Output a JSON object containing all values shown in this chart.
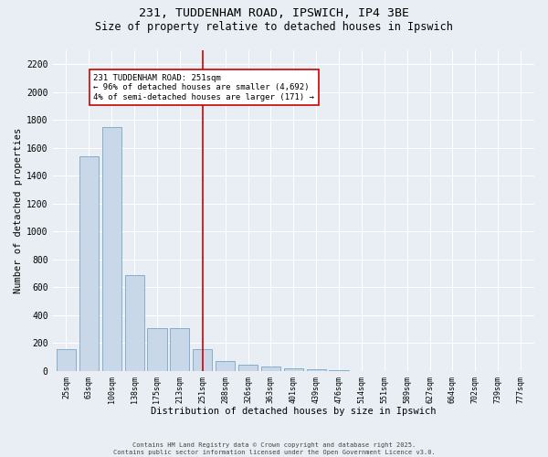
{
  "title_line1": "231, TUDDENHAM ROAD, IPSWICH, IP4 3BE",
  "title_line2": "Size of property relative to detached houses in Ipswich",
  "xlabel": "Distribution of detached houses by size in Ipswich",
  "ylabel": "Number of detached properties",
  "categories": [
    "25sqm",
    "63sqm",
    "100sqm",
    "138sqm",
    "175sqm",
    "213sqm",
    "251sqm",
    "288sqm",
    "326sqm",
    "363sqm",
    "401sqm",
    "439sqm",
    "476sqm",
    "514sqm",
    "551sqm",
    "589sqm",
    "627sqm",
    "664sqm",
    "702sqm",
    "739sqm",
    "777sqm"
  ],
  "values": [
    160,
    1540,
    1750,
    690,
    310,
    310,
    160,
    75,
    45,
    30,
    18,
    10,
    5,
    2,
    1,
    0,
    0,
    0,
    0,
    0,
    0
  ],
  "property_bin_index": 6,
  "annotation_text": "231 TUDDENHAM ROAD: 251sqm\n← 96% of detached houses are smaller (4,692)\n4% of semi-detached houses are larger (171) →",
  "bar_color": "#c8d8e8",
  "bar_edge_color": "#6699bb",
  "highlight_color": "#cc0000",
  "background_color": "#e8eef4",
  "fig_background": "#e8eef4",
  "grid_color": "#ffffff",
  "ylim": [
    0,
    2300
  ],
  "yticks": [
    0,
    200,
    400,
    600,
    800,
    1000,
    1200,
    1400,
    1600,
    1800,
    2000,
    2200
  ],
  "footnote": "Contains HM Land Registry data © Crown copyright and database right 2025.\nContains public sector information licensed under the Open Government Licence v3.0."
}
